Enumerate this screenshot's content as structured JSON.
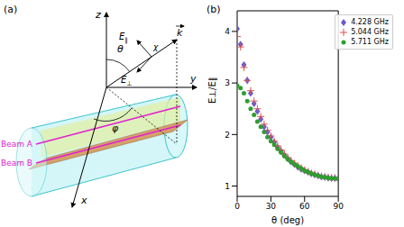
{
  "diagram": {
    "panel_label": "(a)",
    "axes": [
      "x",
      "y",
      "z"
    ],
    "angles": [
      "θ",
      "φ",
      "χ"
    ],
    "vectors": [
      "k",
      "E∥",
      "E⊥"
    ],
    "beams": [
      "Beam A",
      "Beam B"
    ]
  },
  "chart_data": {
    "type": "scatter",
    "panel_label": "(b)",
    "x_label": "θ (deg)",
    "y_label": "E⊥/E∥",
    "xlim": [
      0,
      90
    ],
    "xticks": [
      0,
      30,
      60,
      90
    ],
    "ylim": [
      0.8,
      4.4
    ],
    "yticks": [
      1,
      2,
      3,
      4
    ],
    "legend": "upper right",
    "x": [
      0,
      3,
      6,
      9,
      12,
      15,
      18,
      21,
      24,
      27,
      30,
      33,
      36,
      39,
      42,
      45,
      48,
      51,
      54,
      57,
      60,
      63,
      66,
      69,
      72,
      75,
      78,
      81,
      84,
      87,
      90
    ],
    "series": [
      {
        "name": "4.228 GHz",
        "color": "#6a5acd",
        "marker": "diamond",
        "values": [
          4.05,
          3.75,
          3.35,
          3.05,
          2.8,
          2.6,
          2.45,
          2.3,
          2.15,
          2.05,
          1.95,
          1.85,
          1.75,
          1.68,
          1.6,
          1.53,
          1.47,
          1.42,
          1.37,
          1.33,
          1.3,
          1.27,
          1.24,
          1.22,
          1.2,
          1.18,
          1.17,
          1.16,
          1.15,
          1.15,
          1.14
        ]
      },
      {
        "name": "5.044 GHz",
        "color": "#d9534f",
        "marker": "plus",
        "values": [
          3.9,
          3.7,
          3.3,
          3.05,
          2.85,
          2.65,
          2.5,
          2.35,
          2.2,
          2.08,
          1.97,
          1.87,
          1.78,
          1.7,
          1.62,
          1.55,
          1.49,
          1.44,
          1.39,
          1.35,
          1.31,
          1.28,
          1.25,
          1.23,
          1.21,
          1.19,
          1.18,
          1.17,
          1.16,
          1.16,
          1.15
        ]
      },
      {
        "name": "5.711 GHz",
        "color": "#2e9e2e",
        "marker": "circle",
        "values": [
          2.95,
          2.9,
          2.8,
          2.65,
          2.5,
          2.38,
          2.25,
          2.15,
          2.05,
          1.95,
          1.87,
          1.8,
          1.72,
          1.65,
          1.58,
          1.52,
          1.47,
          1.42,
          1.38,
          1.34,
          1.3,
          1.27,
          1.24,
          1.22,
          1.2,
          1.18,
          1.17,
          1.16,
          1.15,
          1.15,
          1.14
        ]
      }
    ]
  }
}
